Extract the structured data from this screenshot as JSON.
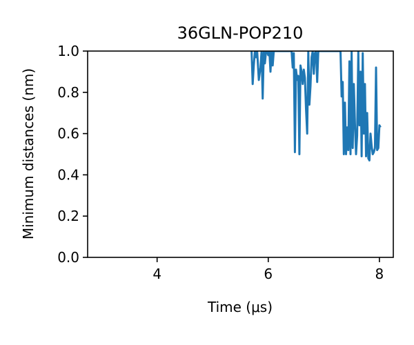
{
  "chart_data": {
    "type": "line",
    "title": "36GLN-POP210",
    "xlabel": "Time (μs)",
    "ylabel": "Minimum distances (nm)",
    "xlim": [
      2.75,
      8.25
    ],
    "ylim": [
      0.0,
      1.0
    ],
    "xticks": [
      4,
      6,
      8
    ],
    "xtick_labels": [
      "4",
      "6",
      "8"
    ],
    "yticks": [
      0.0,
      0.2,
      0.4,
      0.6,
      0.8,
      1.0
    ],
    "ytick_labels": [
      "0.0",
      "0.2",
      "0.4",
      "0.6",
      "0.8",
      "1.0"
    ],
    "grid": false,
    "series": [
      {
        "color": "#1f77b4",
        "x": [
          5.7,
          5.72,
          5.74,
          5.76,
          5.78,
          5.8,
          5.83,
          5.86,
          5.88,
          5.9,
          5.92,
          5.94,
          5.96,
          5.98,
          6.0,
          6.02,
          6.04,
          6.06,
          6.08,
          6.1,
          6.42,
          6.44,
          6.46,
          6.48,
          6.5,
          6.52,
          6.54,
          6.56,
          6.58,
          6.6,
          6.62,
          6.64,
          6.66,
          6.68,
          6.7,
          6.72,
          6.74,
          6.76,
          6.78,
          6.8,
          6.82,
          6.84,
          6.86,
          6.88,
          6.9,
          7.3,
          7.32,
          7.34,
          7.36,
          7.38,
          7.4,
          7.42,
          7.44,
          7.46,
          7.48,
          7.5,
          7.52,
          7.54,
          7.56,
          7.58,
          7.6,
          7.62,
          7.64,
          7.66,
          7.68,
          7.7,
          7.72,
          7.74,
          7.76,
          7.78,
          7.8,
          7.82,
          7.84,
          7.86,
          7.88,
          7.9,
          7.92,
          7.94,
          7.96,
          7.98,
          8.0,
          8.02
        ],
        "y": [
          1.0,
          0.84,
          0.93,
          1.0,
          0.97,
          1.0,
          0.86,
          0.92,
          1.0,
          0.77,
          1.0,
          0.94,
          1.0,
          1.0,
          0.98,
          1.0,
          0.9,
          1.0,
          0.93,
          1.0,
          1.0,
          0.92,
          0.99,
          0.51,
          0.91,
          0.86,
          0.88,
          0.5,
          0.93,
          0.9,
          0.84,
          0.91,
          0.87,
          0.72,
          0.6,
          1.0,
          0.74,
          0.83,
          0.97,
          1.0,
          0.89,
          0.99,
          1.0,
          0.85,
          1.0,
          1.0,
          0.78,
          0.85,
          0.5,
          0.75,
          0.5,
          0.63,
          0.52,
          0.95,
          0.5,
          1.0,
          0.53,
          0.84,
          0.65,
          0.5,
          0.59,
          1.0,
          0.64,
          0.9,
          0.49,
          0.99,
          0.6,
          0.84,
          0.49,
          0.7,
          0.48,
          0.47,
          0.6,
          0.54,
          0.5,
          0.51,
          0.53,
          0.92,
          0.52,
          0.53,
          0.64,
          0.63
        ]
      }
    ]
  }
}
